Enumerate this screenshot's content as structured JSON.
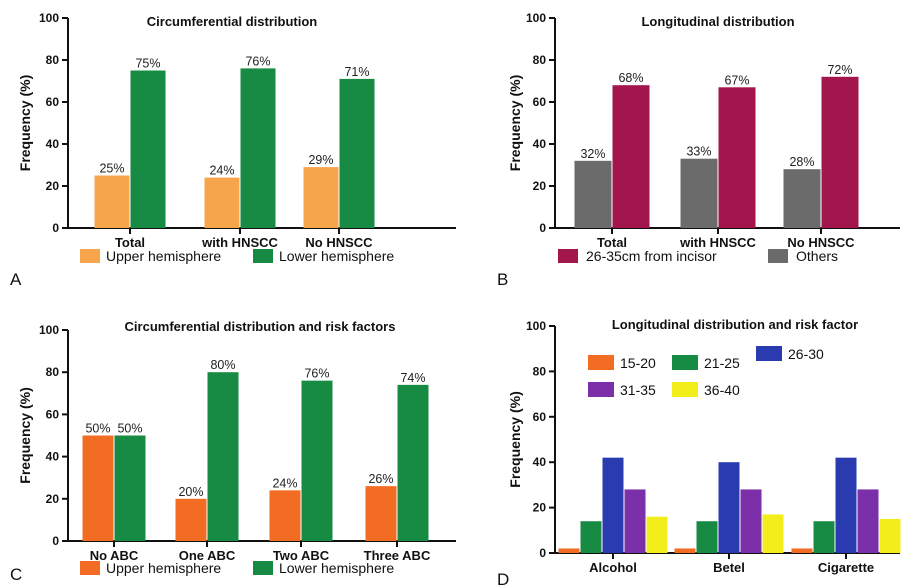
{
  "panel_labels": [
    "A",
    "B",
    "C",
    "D"
  ],
  "colors": {
    "orange_light": "#f6a54a",
    "orange": "#f26c24",
    "green": "#178a44",
    "crimson": "#a3154d",
    "gray": "#6b6b6b",
    "blue": "#2a3bb0",
    "purple": "#7b2fa8",
    "yellow": "#f2ee1c",
    "text": "#111111"
  },
  "chart_data": [
    {
      "type": "bar",
      "title": "Circumferential distribution",
      "ylabel": "Frequency (%)",
      "xlabel": "",
      "ylim": [
        0,
        100
      ],
      "yticks": [
        0,
        20,
        40,
        60,
        80,
        100
      ],
      "categories": [
        "Total",
        "with HNSCC",
        "No HNSCC"
      ],
      "series": [
        {
          "name": "Upper hemisphere",
          "color": "#f6a54a",
          "values": [
            25,
            24,
            29
          ],
          "labels": [
            "25%",
            "24%",
            "29%"
          ]
        },
        {
          "name": "Lower hemisphere",
          "color": "#178a44",
          "values": [
            75,
            76,
            71
          ],
          "labels": [
            "75%",
            "76%",
            "71%"
          ]
        }
      ],
      "legend": "bottom",
      "grid": false
    },
    {
      "type": "bar",
      "title": "Longitudinal distribution",
      "ylabel": "Frequency (%)",
      "xlabel": "",
      "ylim": [
        0,
        100
      ],
      "yticks": [
        0,
        20,
        40,
        60,
        80,
        100
      ],
      "categories": [
        "Total",
        "with HNSCC",
        "No HNSCC"
      ],
      "series": [
        {
          "name": "Others",
          "color": "#6b6b6b",
          "values": [
            32,
            33,
            28
          ],
          "labels": [
            "32%",
            "33%",
            "28%"
          ]
        },
        {
          "name": "26-35cm from incisor",
          "color": "#a3154d",
          "values": [
            68,
            67,
            72
          ],
          "labels": [
            "68%",
            "67%",
            "72%"
          ]
        }
      ],
      "legend_order": [
        "26-35cm from incisor",
        "Others"
      ],
      "legend": "bottom",
      "grid": false
    },
    {
      "type": "bar",
      "title": "Circumferential distribution and risk factors",
      "ylabel": "Frequency (%)",
      "xlabel": "",
      "ylim": [
        0,
        100
      ],
      "yticks": [
        0,
        20,
        40,
        60,
        80,
        100
      ],
      "categories": [
        "No ABC",
        "One ABC",
        "Two ABC",
        "Three ABC"
      ],
      "series": [
        {
          "name": "Upper hemisphere",
          "color": "#f26c24",
          "values": [
            50,
            20,
            24,
            26
          ],
          "labels": [
            "50%",
            "20%",
            "24%",
            "26%"
          ]
        },
        {
          "name": "Lower hemisphere",
          "color": "#178a44",
          "values": [
            50,
            80,
            76,
            74
          ],
          "labels": [
            "50%",
            "80%",
            "76%",
            "74%"
          ]
        }
      ],
      "legend": "bottom",
      "grid": false
    },
    {
      "type": "bar",
      "title": "Longitudinal distribution and risk factor",
      "ylabel": "Frequency (%)",
      "xlabel": "",
      "ylim": [
        0,
        100
      ],
      "yticks": [
        0,
        20,
        40,
        60,
        80,
        100
      ],
      "categories": [
        "Alcohol",
        "Betel",
        "Cigarette"
      ],
      "series": [
        {
          "name": "15-20",
          "color": "#f26c24",
          "values": [
            2,
            2,
            2
          ]
        },
        {
          "name": "21-25",
          "color": "#178a44",
          "values": [
            14,
            14,
            14
          ]
        },
        {
          "name": "26-30",
          "color": "#2a3bb0",
          "values": [
            42,
            40,
            42
          ]
        },
        {
          "name": "31-35",
          "color": "#7b2fa8",
          "values": [
            28,
            28,
            28
          ]
        },
        {
          "name": "36-40",
          "color": "#f2ee1c",
          "values": [
            16,
            17,
            15
          ]
        }
      ],
      "legend": "top-left inside",
      "grid": false
    }
  ]
}
